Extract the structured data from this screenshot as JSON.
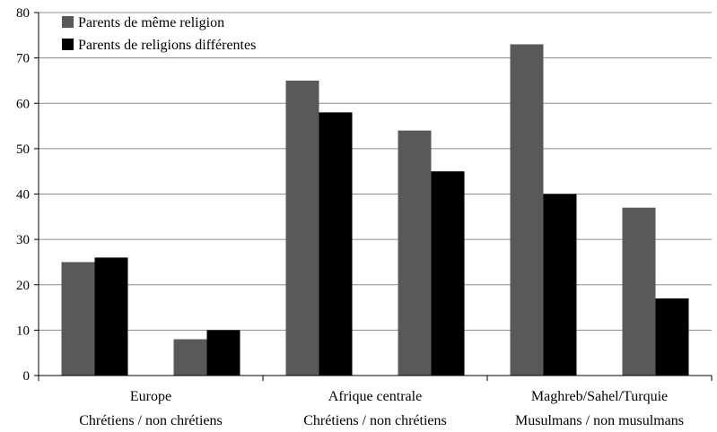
{
  "chart_data": {
    "type": "bar",
    "title": "",
    "xlabel": "",
    "ylabel": "",
    "ylim": [
      0,
      80
    ],
    "yticks": [
      0,
      10,
      20,
      30,
      40,
      50,
      60,
      70,
      80
    ],
    "grid": true,
    "legend_position": "top-left",
    "groups": [
      {
        "label": "Europe",
        "categories": [
          "Chrétiens",
          "non chrétiens"
        ],
        "sublabel": "Chrétiens / non chrétiens"
      },
      {
        "label": "Afrique centrale",
        "categories": [
          "Chrétiens",
          "non chrétiens"
        ],
        "sublabel": "Chrétiens / non chrétiens"
      },
      {
        "label": "Maghreb/Sahel/Turquie",
        "categories": [
          "Musulmans",
          "non musulmans"
        ],
        "sublabel": "Musulmans / non musulmans"
      }
    ],
    "series": [
      {
        "name": "Parents de même religion",
        "color": "#595959",
        "values": [
          25,
          8,
          65,
          54,
          73,
          37
        ]
      },
      {
        "name": "Parents de religions différentes",
        "color": "#000000",
        "values": [
          26,
          10,
          58,
          45,
          40,
          17
        ]
      }
    ]
  }
}
